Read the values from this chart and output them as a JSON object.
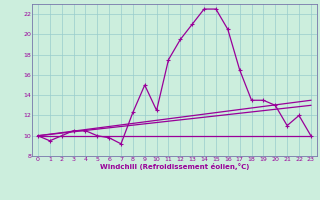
{
  "xlabel": "Windchill (Refroidissement éolien,°C)",
  "background_color": "#cceedd",
  "grid_color": "#99cccc",
  "line_color": "#990099",
  "spine_color": "#7777aa",
  "xlim": [
    -0.5,
    23.5
  ],
  "ylim": [
    8,
    23
  ],
  "xticks": [
    0,
    1,
    2,
    3,
    4,
    5,
    6,
    7,
    8,
    9,
    10,
    11,
    12,
    13,
    14,
    15,
    16,
    17,
    18,
    19,
    20,
    21,
    22,
    23
  ],
  "yticks": [
    8,
    10,
    12,
    14,
    16,
    18,
    20,
    22
  ],
  "series1_x": [
    0,
    1,
    2,
    3,
    4,
    5,
    6,
    7,
    8,
    9,
    10,
    11,
    12,
    13,
    14,
    15,
    16,
    17,
    18,
    19,
    20,
    21,
    22,
    23
  ],
  "series1_y": [
    10.0,
    9.5,
    10.0,
    10.5,
    10.5,
    10.0,
    9.8,
    9.2,
    12.3,
    15.0,
    12.5,
    17.5,
    19.5,
    21.0,
    22.5,
    22.5,
    20.5,
    16.5,
    13.5,
    13.5,
    13.0,
    11.0,
    12.0,
    10.0
  ],
  "series2_x": [
    0,
    23
  ],
  "series2_y": [
    10.0,
    10.0
  ],
  "series3_x": [
    0,
    23
  ],
  "series3_y": [
    10.0,
    13.0
  ],
  "series4_x": [
    0,
    23
  ],
  "series4_y": [
    10.0,
    13.5
  ]
}
